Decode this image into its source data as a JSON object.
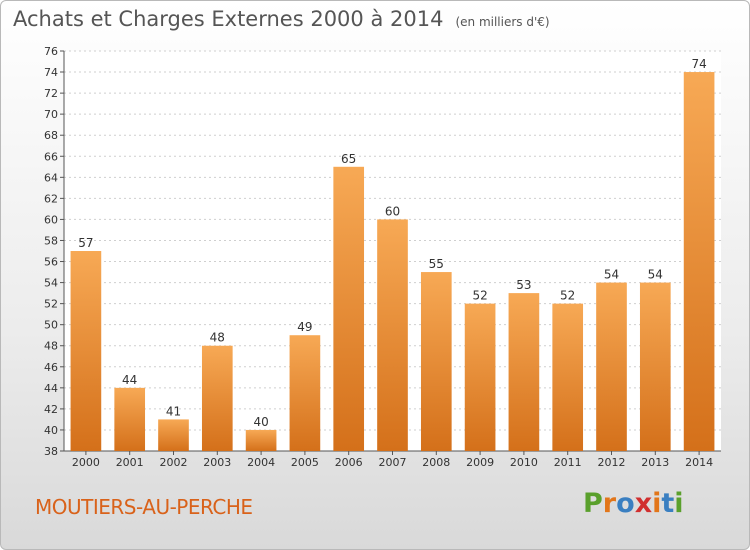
{
  "header": {
    "title": "Achats et Charges Externes 2000 à 2014",
    "subtitle": "(en milliers d'€)"
  },
  "footer": {
    "town": "MOUTIERS-AU-PERCHE",
    "logo": [
      "P",
      "r",
      "o",
      "x",
      "i",
      "t",
      "i"
    ]
  },
  "colors": {
    "bar_top": "#f7a955",
    "bar_bottom": "#d4701a",
    "town": "#d9621a",
    "logo": [
      "#5aa02c",
      "#e2761a",
      "#3a7fc1",
      "#d12f2f",
      "#e2761a",
      "#3a7fc1",
      "#5aa02c"
    ]
  },
  "chart_data": {
    "type": "bar",
    "title": "Achats et Charges Externes 2000 à 2014",
    "subtitle": "(en milliers d'€)",
    "categories": [
      "2000",
      "2001",
      "2002",
      "2003",
      "2004",
      "2005",
      "2006",
      "2007",
      "2008",
      "2009",
      "2010",
      "2011",
      "2012",
      "2013",
      "2014"
    ],
    "values": [
      57,
      44,
      41,
      48,
      40,
      49,
      65,
      60,
      55,
      52,
      53,
      52,
      54,
      54,
      74
    ],
    "ylim": [
      38,
      76
    ],
    "yticks": [
      38,
      40,
      42,
      44,
      46,
      48,
      50,
      52,
      54,
      56,
      58,
      60,
      62,
      64,
      66,
      68,
      70,
      72,
      74,
      76
    ],
    "grid": true,
    "legend": "none"
  }
}
